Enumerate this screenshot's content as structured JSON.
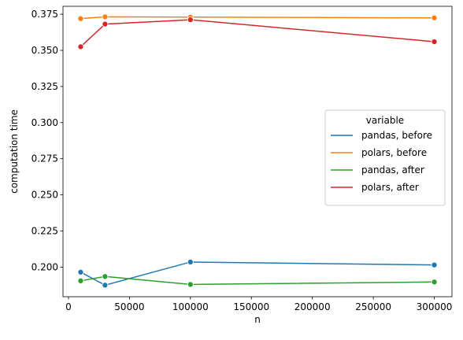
{
  "chart_data": {
    "type": "line",
    "xlabel": "n",
    "ylabel": "computation time",
    "xlim": [
      -4500,
      314500
    ],
    "ylim": [
      0.1795,
      0.3805
    ],
    "xticks": [
      0,
      50000,
      100000,
      150000,
      200000,
      250000,
      300000
    ],
    "yticks": [
      0.2,
      0.225,
      0.25,
      0.275,
      0.3,
      0.325,
      0.35,
      0.375
    ],
    "legend": {
      "title": "variable",
      "placement": "center-right"
    },
    "x": [
      10000,
      30000,
      100000,
      300000
    ],
    "series": [
      {
        "name": "pandas, before",
        "color": "#1f77b4",
        "values": [
          0.1965,
          0.1875,
          0.2035,
          0.2015
        ]
      },
      {
        "name": "polars, before",
        "color": "#ff7f0e",
        "values": [
          0.372,
          0.3732,
          0.373,
          0.3725
        ]
      },
      {
        "name": "pandas, after",
        "color": "#2ca02c",
        "values": [
          0.1905,
          0.1935,
          0.188,
          0.1897
        ]
      },
      {
        "name": "polars, after",
        "color": "#d62728",
        "values": [
          0.3525,
          0.3682,
          0.3712,
          0.356
        ]
      }
    ]
  }
}
